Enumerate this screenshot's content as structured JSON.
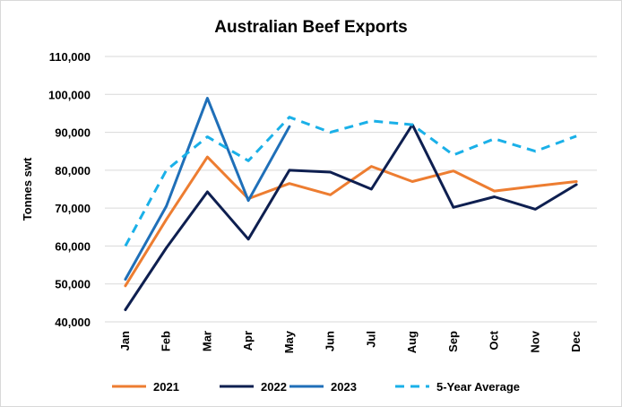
{
  "chart_data": {
    "type": "line",
    "title": "Australian Beef Exports",
    "ylabel": "Tonnes swt",
    "xlabel": "",
    "categories": [
      "Jan",
      "Feb",
      "Mar",
      "Apr",
      "May",
      "Jun",
      "Jul",
      "Aug",
      "Sep",
      "Oct",
      "Nov",
      "Dec"
    ],
    "ylim": [
      40000,
      110000
    ],
    "yticks": [
      40000,
      50000,
      60000,
      70000,
      80000,
      90000,
      100000,
      110000
    ],
    "ytick_labels": [
      "40,000",
      "50,000",
      "60,000",
      "70,000",
      "80,000",
      "90,000",
      "100,000",
      "110,000"
    ],
    "grid": true,
    "legend": "bottom",
    "series": [
      {
        "name": "2021",
        "color": "#ed7d31",
        "dash": "solid",
        "values": [
          49500,
          67000,
          83500,
          72500,
          76500,
          73500,
          81000,
          77000,
          79800,
          74500,
          75800,
          77000
        ]
      },
      {
        "name": "2022",
        "color": "#0e1f50",
        "dash": "solid",
        "values": [
          43200,
          59500,
          74300,
          61800,
          80000,
          79500,
          75000,
          92000,
          70200,
          73000,
          69700,
          76200
        ]
      },
      {
        "name": "2023",
        "color": "#1f6fb8",
        "dash": "solid",
        "values": [
          51200,
          70500,
          99000,
          72000,
          91500,
          null,
          null,
          null,
          null,
          null,
          null,
          null
        ]
      },
      {
        "name": "5-Year Average",
        "color": "#1ab0e8",
        "dash": "dashed",
        "values": [
          60000,
          80000,
          88800,
          82500,
          94000,
          90000,
          93000,
          92000,
          84000,
          88300,
          85000,
          89000
        ]
      }
    ]
  }
}
